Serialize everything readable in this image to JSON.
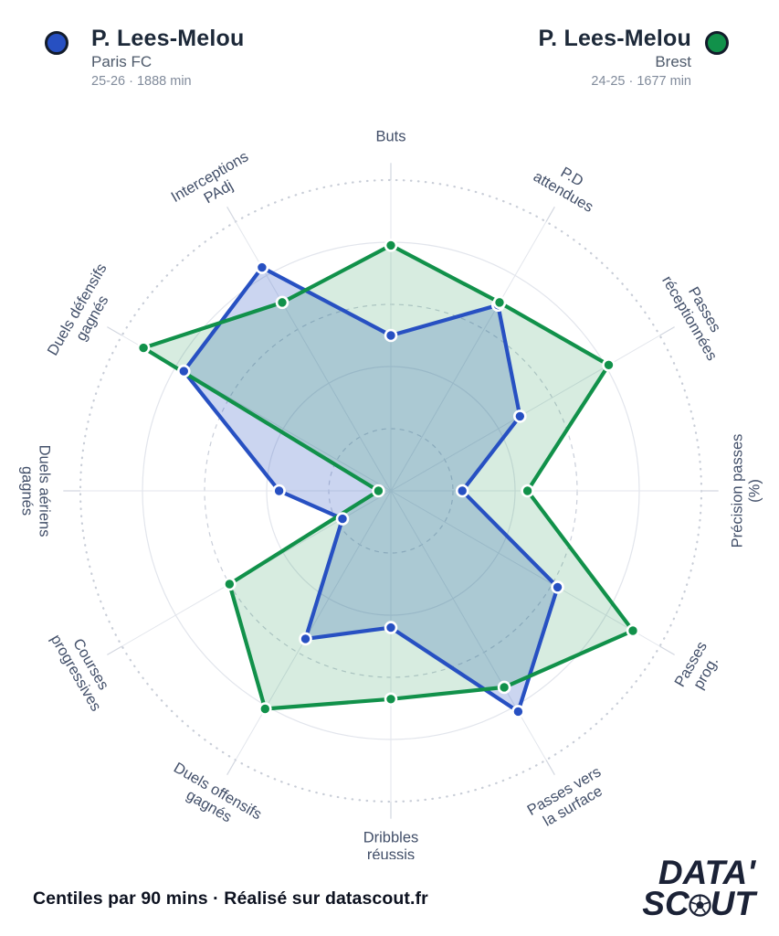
{
  "header": {
    "player_a": {
      "name": "P. Lees-Melou",
      "team": "Paris FC",
      "season": "25-26 · 1888 min",
      "color": "#2750c2"
    },
    "player_b": {
      "name": "P. Lees-Melou",
      "team": "Brest",
      "season": "24-25 · 1677 min",
      "color": "#11914a"
    }
  },
  "footer": {
    "note": "Centiles par 90 mins · Réalisé sur datascout.fr"
  },
  "logo": {
    "line1": "DATA'",
    "line2_pre": "SC",
    "line2_post": "UT",
    "ball_icon": "soccer-ball",
    "color": "#1b2236"
  },
  "chart_data": {
    "type": "radar",
    "title": "Comparaison P. Lees-Melou Paris FC 25-26 vs Brest 24-25",
    "units": "Centiles par 90 mins (0-100)",
    "scale": {
      "min": 0,
      "max": 100,
      "rings": [
        20,
        40,
        60,
        80,
        100
      ],
      "grid": "circular, dashed/solid alternating, outer ring dotted"
    },
    "legend_position": "top (header blocks)",
    "categories": [
      "Buts",
      "P.D attendues",
      "Passes réceptionnées",
      "Précision passes (%)",
      "Passes prog.",
      "Passes vers la surface",
      "Dribbles réussis",
      "Duels offensifs gagnés",
      "Courses progressives",
      "Duels aériens gagnés",
      "Duels défensifs gagnés",
      "Interceptions PAdj"
    ],
    "series": [
      {
        "name": "P. Lees-Melou — Paris FC 25-26",
        "color": "#2750c2",
        "values": [
          50,
          69,
          48,
          23,
          62,
          82,
          44,
          55,
          18,
          36,
          77,
          83
        ]
      },
      {
        "name": "P. Lees-Melou — Brest 24-25",
        "color": "#11914a",
        "values": [
          79,
          70,
          81,
          44,
          90,
          73,
          67,
          81,
          60,
          4,
          92,
          70
        ]
      }
    ],
    "label_lines": [
      [
        "Buts"
      ],
      [
        "P.D",
        "attendues"
      ],
      [
        "Passes",
        "réceptionnées"
      ],
      [
        "Précision passes",
        "(%)"
      ],
      [
        "Passes",
        "prog."
      ],
      [
        "Passes vers",
        "la surface"
      ],
      [
        "Dribbles",
        "réussis"
      ],
      [
        "Duels offensifs",
        "gagnés"
      ],
      [
        "Courses",
        "progressives"
      ],
      [
        "Duels aériens",
        "gagnés"
      ],
      [
        "Duels défensifs",
        "gagnés"
      ],
      [
        "Interceptions",
        "PAdj"
      ]
    ],
    "label_rotations": [
      0,
      30,
      60,
      -90,
      -60,
      -30,
      0,
      30,
      60,
      90,
      -60,
      -30
    ]
  }
}
